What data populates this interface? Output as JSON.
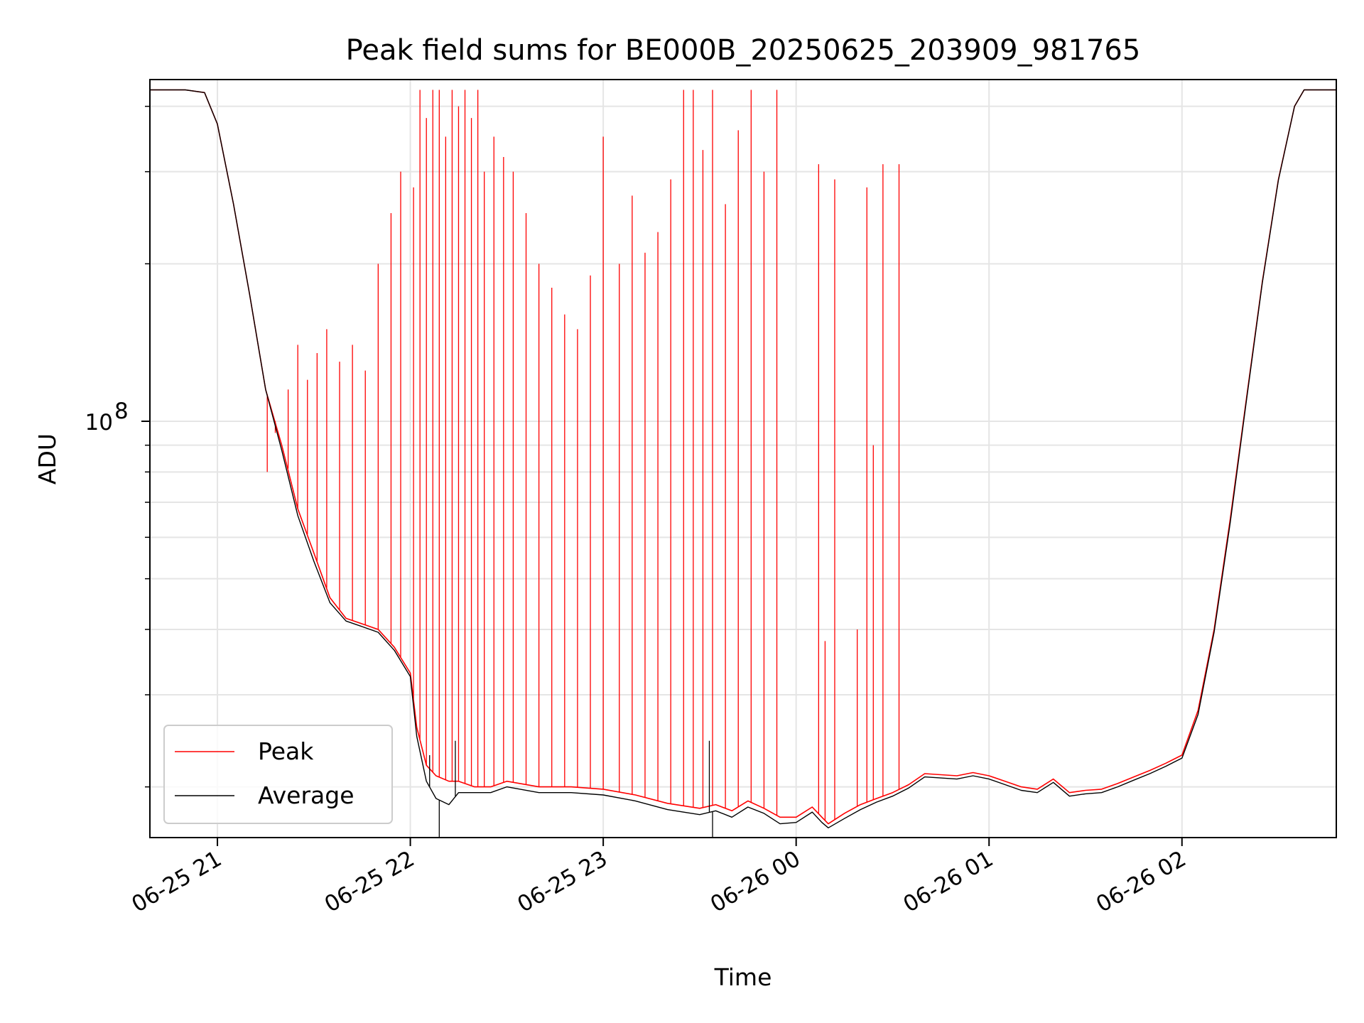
{
  "chart_data": {
    "type": "line",
    "title": "Peak field sums for BE000B_20250625_203909_981765",
    "xlabel": "Time",
    "ylabel": "ADU",
    "yscale": "log",
    "xlim": [
      "2025-06-25T20:39:00",
      "2025-06-26T02:48:00"
    ],
    "ylim": [
      16000000,
      450000000
    ],
    "x_ticks": [
      {
        "label": "06-25 21",
        "value": "2025-06-25T21:00:00"
      },
      {
        "label": "06-25 22",
        "value": "2025-06-25T22:00:00"
      },
      {
        "label": "06-25 23",
        "value": "2025-06-25T23:00:00"
      },
      {
        "label": "06-26 00",
        "value": "2025-06-26T00:00:00"
      },
      {
        "label": "06-26 01",
        "value": "2025-06-26T01:00:00"
      },
      {
        "label": "06-26 02",
        "value": "2025-06-26T02:00:00"
      }
    ],
    "y_major_ticks": [
      {
        "label": "10",
        "exp": "8",
        "value": 100000000
      }
    ],
    "y_minor_ticks": [
      20000000,
      30000000,
      40000000,
      50000000,
      60000000,
      70000000,
      80000000,
      90000000,
      200000000,
      300000000,
      400000000
    ],
    "grid": true,
    "legend_position": "lower-left",
    "series": [
      {
        "name": "Peak",
        "color": "#ff0000",
        "x": [
          "2025-06-25T20:39:00",
          "2025-06-25T20:50:00",
          "2025-06-25T20:56:00",
          "2025-06-25T21:00:00",
          "2025-06-25T21:05:00",
          "2025-06-25T21:10:00",
          "2025-06-25T21:15:00",
          "2025-06-25T21:20:00",
          "2025-06-25T21:25:00",
          "2025-06-25T21:30:00",
          "2025-06-25T21:35:00",
          "2025-06-25T21:40:00",
          "2025-06-25T21:45:00",
          "2025-06-25T21:50:00",
          "2025-06-25T21:55:00",
          "2025-06-25T22:00:00",
          "2025-06-25T22:02:00",
          "2025-06-25T22:05:00",
          "2025-06-25T22:08:00",
          "2025-06-25T22:12:00",
          "2025-06-25T22:15:00",
          "2025-06-25T22:20:00",
          "2025-06-25T22:25:00",
          "2025-06-25T22:30:00",
          "2025-06-25T22:40:00",
          "2025-06-25T22:50:00",
          "2025-06-25T23:00:00",
          "2025-06-25T23:10:00",
          "2025-06-25T23:20:00",
          "2025-06-25T23:30:00",
          "2025-06-25T23:35:00",
          "2025-06-25T23:40:00",
          "2025-06-25T23:45:00",
          "2025-06-25T23:50:00",
          "2025-06-25T23:55:00",
          "2025-06-26T00:00:00",
          "2025-06-26T00:05:00",
          "2025-06-26T00:08:00",
          "2025-06-26T00:10:00",
          "2025-06-26T00:15:00",
          "2025-06-26T00:20:00",
          "2025-06-26T00:25:00",
          "2025-06-26T00:30:00",
          "2025-06-26T00:35:00",
          "2025-06-26T00:40:00",
          "2025-06-26T00:45:00",
          "2025-06-26T00:50:00",
          "2025-06-26T00:55:00",
          "2025-06-26T01:00:00",
          "2025-06-26T01:05:00",
          "2025-06-26T01:10:00",
          "2025-06-26T01:15:00",
          "2025-06-26T01:20:00",
          "2025-06-26T01:25:00",
          "2025-06-26T01:30:00",
          "2025-06-26T01:35:00",
          "2025-06-26T01:40:00",
          "2025-06-26T01:45:00",
          "2025-06-26T01:50:00",
          "2025-06-26T01:55:00",
          "2025-06-26T02:00:00",
          "2025-06-26T02:05:00",
          "2025-06-26T02:10:00",
          "2025-06-26T02:15:00",
          "2025-06-26T02:20:00",
          "2025-06-26T02:25:00",
          "2025-06-26T02:30:00",
          "2025-06-26T02:35:00",
          "2025-06-26T02:38:00",
          "2025-06-26T02:42:00",
          "2025-06-26T02:48:00"
        ],
        "y": [
          430000000,
          430000000,
          425000000,
          370000000,
          260000000,
          175000000,
          115000000,
          90000000,
          68000000,
          56000000,
          46000000,
          42000000,
          41000000,
          40000000,
          37000000,
          33000000,
          26000000,
          22000000,
          21000000,
          20500000,
          20500000,
          20000000,
          20000000,
          20500000,
          20000000,
          20000000,
          19800000,
          19300000,
          18600000,
          18200000,
          18500000,
          18000000,
          18800000,
          18200000,
          17500000,
          17500000,
          18300000,
          17500000,
          17000000,
          17800000,
          18500000,
          19000000,
          19500000,
          20200000,
          21200000,
          21100000,
          21000000,
          21300000,
          21000000,
          20500000,
          20000000,
          19800000,
          20700000,
          19500000,
          19700000,
          19800000,
          20300000,
          20900000,
          21500000,
          22200000,
          23000000,
          28000000,
          40000000,
          65000000,
          110000000,
          185000000,
          290000000,
          400000000,
          430000000,
          430000000,
          430000000
        ],
        "spikes": [
          [
            "2025-06-25T21:15:30",
            80000000
          ],
          [
            "2025-06-25T21:18:00",
            95000000
          ],
          [
            "2025-06-25T21:22:00",
            115000000
          ],
          [
            "2025-06-25T21:25:00",
            140000000
          ],
          [
            "2025-06-25T21:28:00",
            120000000
          ],
          [
            "2025-06-25T21:31:00",
            135000000
          ],
          [
            "2025-06-25T21:34:00",
            150000000
          ],
          [
            "2025-06-25T21:38:00",
            130000000
          ],
          [
            "2025-06-25T21:42:00",
            140000000
          ],
          [
            "2025-06-25T21:46:00",
            125000000
          ],
          [
            "2025-06-25T21:50:00",
            200000000
          ],
          [
            "2025-06-25T21:54:00",
            250000000
          ],
          [
            "2025-06-25T21:57:00",
            300000000
          ],
          [
            "2025-06-25T22:01:00",
            280000000
          ],
          [
            "2025-06-25T22:03:00",
            430000000
          ],
          [
            "2025-06-25T22:05:00",
            380000000
          ],
          [
            "2025-06-25T22:07:00",
            430000000
          ],
          [
            "2025-06-25T22:09:00",
            430000000
          ],
          [
            "2025-06-25T22:11:00",
            350000000
          ],
          [
            "2025-06-25T22:13:00",
            430000000
          ],
          [
            "2025-06-25T22:15:00",
            400000000
          ],
          [
            "2025-06-25T22:17:00",
            430000000
          ],
          [
            "2025-06-25T22:19:00",
            380000000
          ],
          [
            "2025-06-25T22:21:00",
            430000000
          ],
          [
            "2025-06-25T22:23:00",
            300000000
          ],
          [
            "2025-06-25T22:26:00",
            350000000
          ],
          [
            "2025-06-25T22:29:00",
            320000000
          ],
          [
            "2025-06-25T22:32:00",
            300000000
          ],
          [
            "2025-06-25T22:36:00",
            250000000
          ],
          [
            "2025-06-25T22:40:00",
            200000000
          ],
          [
            "2025-06-25T22:44:00",
            180000000
          ],
          [
            "2025-06-25T22:48:00",
            160000000
          ],
          [
            "2025-06-25T22:52:00",
            150000000
          ],
          [
            "2025-06-25T22:56:00",
            190000000
          ],
          [
            "2025-06-25T23:00:00",
            350000000
          ],
          [
            "2025-06-25T23:05:00",
            200000000
          ],
          [
            "2025-06-25T23:09:00",
            270000000
          ],
          [
            "2025-06-25T23:13:00",
            210000000
          ],
          [
            "2025-06-25T23:17:00",
            230000000
          ],
          [
            "2025-06-25T23:21:00",
            290000000
          ],
          [
            "2025-06-25T23:25:00",
            430000000
          ],
          [
            "2025-06-25T23:28:00",
            430000000
          ],
          [
            "2025-06-25T23:31:00",
            330000000
          ],
          [
            "2025-06-25T23:34:00",
            430000000
          ],
          [
            "2025-06-25T23:38:00",
            260000000
          ],
          [
            "2025-06-25T23:42:00",
            360000000
          ],
          [
            "2025-06-25T23:46:00",
            430000000
          ],
          [
            "2025-06-25T23:50:00",
            300000000
          ],
          [
            "2025-06-25T23:54:00",
            430000000
          ],
          [
            "2025-06-26T00:07:00",
            310000000
          ],
          [
            "2025-06-26T00:09:00",
            38000000
          ],
          [
            "2025-06-26T00:12:00",
            290000000
          ],
          [
            "2025-06-26T00:19:00",
            40000000
          ],
          [
            "2025-06-26T00:22:00",
            280000000
          ],
          [
            "2025-06-26T00:24:00",
            90000000
          ],
          [
            "2025-06-26T00:27:00",
            310000000
          ],
          [
            "2025-06-26T00:32:00",
            310000000
          ]
        ]
      },
      {
        "name": "Average",
        "color": "#000000",
        "x": [
          "2025-06-25T20:39:00",
          "2025-06-25T20:50:00",
          "2025-06-25T20:56:00",
          "2025-06-25T21:00:00",
          "2025-06-25T21:05:00",
          "2025-06-25T21:10:00",
          "2025-06-25T21:15:00",
          "2025-06-25T21:20:00",
          "2025-06-25T21:25:00",
          "2025-06-25T21:30:00",
          "2025-06-25T21:35:00",
          "2025-06-25T21:40:00",
          "2025-06-25T21:45:00",
          "2025-06-25T21:50:00",
          "2025-06-25T21:55:00",
          "2025-06-25T22:00:00",
          "2025-06-25T22:02:00",
          "2025-06-25T22:05:00",
          "2025-06-25T22:08:00",
          "2025-06-25T22:12:00",
          "2025-06-25T22:15:00",
          "2025-06-25T22:20:00",
          "2025-06-25T22:25:00",
          "2025-06-25T22:30:00",
          "2025-06-25T22:40:00",
          "2025-06-25T22:50:00",
          "2025-06-25T23:00:00",
          "2025-06-25T23:10:00",
          "2025-06-25T23:20:00",
          "2025-06-25T23:30:00",
          "2025-06-25T23:35:00",
          "2025-06-25T23:40:00",
          "2025-06-25T23:45:00",
          "2025-06-25T23:50:00",
          "2025-06-25T23:55:00",
          "2025-06-26T00:00:00",
          "2025-06-26T00:05:00",
          "2025-06-26T00:08:00",
          "2025-06-26T00:10:00",
          "2025-06-26T00:15:00",
          "2025-06-26T00:20:00",
          "2025-06-26T00:25:00",
          "2025-06-26T00:30:00",
          "2025-06-26T00:35:00",
          "2025-06-26T00:40:00",
          "2025-06-26T00:45:00",
          "2025-06-26T00:50:00",
          "2025-06-26T00:55:00",
          "2025-06-26T01:00:00",
          "2025-06-26T01:05:00",
          "2025-06-26T01:10:00",
          "2025-06-26T01:15:00",
          "2025-06-26T01:20:00",
          "2025-06-26T01:25:00",
          "2025-06-26T01:30:00",
          "2025-06-26T01:35:00",
          "2025-06-26T01:40:00",
          "2025-06-26T01:45:00",
          "2025-06-26T01:50:00",
          "2025-06-26T01:55:00",
          "2025-06-26T02:00:00",
          "2025-06-26T02:05:00",
          "2025-06-26T02:10:00",
          "2025-06-26T02:15:00",
          "2025-06-26T02:20:00",
          "2025-06-26T02:25:00",
          "2025-06-26T02:30:00",
          "2025-06-26T02:35:00",
          "2025-06-26T02:38:00",
          "2025-06-26T02:42:00",
          "2025-06-26T02:48:00"
        ],
        "y": [
          430000000,
          430000000,
          425000000,
          370000000,
          260000000,
          175000000,
          115000000,
          88000000,
          66000000,
          54000000,
          45000000,
          41500000,
          40500000,
          39500000,
          36500000,
          32500000,
          25000000,
          20500000,
          19000000,
          18500000,
          19500000,
          19500000,
          19500000,
          20000000,
          19500000,
          19500000,
          19300000,
          18800000,
          18100000,
          17700000,
          18000000,
          17500000,
          18300000,
          17800000,
          17000000,
          17100000,
          17900000,
          17100000,
          16700000,
          17400000,
          18100000,
          18700000,
          19200000,
          19900000,
          20900000,
          20800000,
          20700000,
          21000000,
          20700000,
          20200000,
          19700000,
          19500000,
          20400000,
          19200000,
          19400000,
          19500000,
          20000000,
          20600000,
          21200000,
          21900000,
          22700000,
          27500000,
          39500000,
          64000000,
          109000000,
          184000000,
          289000000,
          400000000,
          430000000,
          430000000,
          430000000
        ],
        "spikes": [
          [
            "2025-06-25T22:09:00",
            15800000
          ],
          [
            "2025-06-25T22:06:00",
            23000000
          ],
          [
            "2025-06-25T22:14:00",
            24500000
          ],
          [
            "2025-06-25T23:34:00",
            15500000
          ],
          [
            "2025-06-25T23:33:00",
            24500000
          ]
        ]
      }
    ]
  }
}
